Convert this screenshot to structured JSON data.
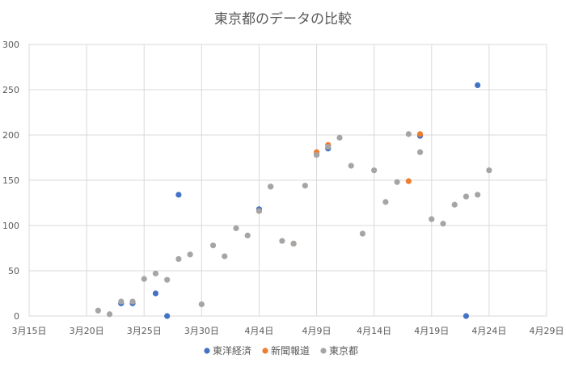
{
  "chart_data": {
    "type": "scatter",
    "title": "東京都のデータの比較",
    "xlabel": "",
    "ylabel": "",
    "ylim": [
      0,
      300
    ],
    "yticks": [
      0,
      50,
      100,
      150,
      200,
      250,
      300
    ],
    "xlim": [
      "2020-03-15",
      "2020-04-29"
    ],
    "xtick_labels": [
      "3月15日",
      "3月20日",
      "3月25日",
      "3月30日",
      "4月4日",
      "4月9日",
      "4月14日",
      "4月19日",
      "4月24日",
      "4月29日"
    ],
    "grid": true,
    "legend_position": "bottom",
    "colors": {
      "東洋経済": "#4472C4",
      "新聞報道": "#ED7D31",
      "東京都": "#A5A5A5"
    },
    "series": [
      {
        "name": "東洋経済",
        "points": [
          [
            "2020-03-23",
            14
          ],
          [
            "2020-03-24",
            14
          ],
          [
            "2020-03-26",
            25
          ],
          [
            "2020-03-27",
            0
          ],
          [
            "2020-03-28",
            134
          ],
          [
            "2020-04-04",
            118
          ],
          [
            "2020-04-09",
            178
          ],
          [
            "2020-04-10",
            185
          ],
          [
            "2020-04-18",
            199
          ],
          [
            "2020-04-22",
            0
          ],
          [
            "2020-04-23",
            255
          ]
        ]
      },
      {
        "name": "新聞報道",
        "points": [
          [
            "2020-04-04",
            116
          ],
          [
            "2020-04-05",
            143
          ],
          [
            "2020-04-07",
            80
          ],
          [
            "2020-04-09",
            181
          ],
          [
            "2020-04-10",
            189
          ],
          [
            "2020-04-17",
            149
          ],
          [
            "2020-04-18",
            201
          ]
        ]
      },
      {
        "name": "東京都",
        "points": [
          [
            "2020-03-21",
            6
          ],
          [
            "2020-03-22",
            2
          ],
          [
            "2020-03-23",
            16
          ],
          [
            "2020-03-24",
            16
          ],
          [
            "2020-03-25",
            41
          ],
          [
            "2020-03-26",
            47
          ],
          [
            "2020-03-27",
            40
          ],
          [
            "2020-03-28",
            63
          ],
          [
            "2020-03-29",
            68
          ],
          [
            "2020-03-30",
            13
          ],
          [
            "2020-03-31",
            78
          ],
          [
            "2020-04-01",
            66
          ],
          [
            "2020-04-02",
            97
          ],
          [
            "2020-04-03",
            89
          ],
          [
            "2020-04-04",
            116
          ],
          [
            "2020-04-05",
            143
          ],
          [
            "2020-04-06",
            83
          ],
          [
            "2020-04-07",
            80
          ],
          [
            "2020-04-08",
            144
          ],
          [
            "2020-04-09",
            178
          ],
          [
            "2020-04-10",
            187
          ],
          [
            "2020-04-11",
            197
          ],
          [
            "2020-04-12",
            166
          ],
          [
            "2020-04-13",
            91
          ],
          [
            "2020-04-14",
            161
          ],
          [
            "2020-04-15",
            126
          ],
          [
            "2020-04-16",
            148
          ],
          [
            "2020-04-17",
            201
          ],
          [
            "2020-04-18",
            181
          ],
          [
            "2020-04-19",
            107
          ],
          [
            "2020-04-20",
            102
          ],
          [
            "2020-04-21",
            123
          ],
          [
            "2020-04-22",
            132
          ],
          [
            "2020-04-23",
            134
          ],
          [
            "2020-04-24",
            161
          ]
        ]
      }
    ]
  }
}
